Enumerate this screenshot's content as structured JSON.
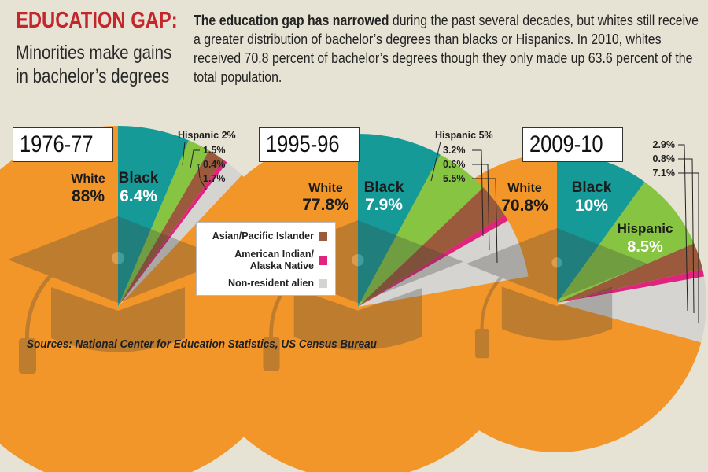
{
  "header": {
    "title": "EDUCATION GAP:",
    "subtitle_line1": "Minorities make gains",
    "subtitle_line2": "in bachelor’s degrees",
    "lead_bold": "The education gap has narrowed",
    "lead_text": " during the past several decades, but whites still receive a greater distribution of bachelor’s degrees than blacks or Hispanics. In 2010, whites received 70.8 percent of bachelor’s degrees though they only made up 63.6 percent of the total population."
  },
  "legend": {
    "items": [
      {
        "label": "Asian/Pacific Islander",
        "color": "#9b5a3b"
      },
      {
        "label": "American Indian/ Alaska Native",
        "color": "#e0237f"
      },
      {
        "label": "Non-resident alien",
        "color": "#d6d4d0"
      }
    ]
  },
  "sources": "Sources: National Center for Education Statistics, US Census Bureau",
  "colors": {
    "white": "#f3962a",
    "black": "#169a98",
    "hispanic": "#86c442",
    "asian": "#9b5a3b",
    "native": "#e0237f",
    "nonresident": "#d6d4d0",
    "background": "#e6e3d4"
  },
  "chart_data": [
    {
      "type": "pie",
      "title": "1976-77",
      "categories": [
        "White",
        "Black",
        "Hispanic",
        "Asian/Pacific Islander",
        "American Indian/Alaska Native",
        "Non-resident alien"
      ],
      "values": [
        88,
        6.4,
        2,
        1.5,
        0.4,
        1.7
      ],
      "labels": {
        "white": {
          "name": "White",
          "value": "88%"
        },
        "black": {
          "name": "Black",
          "value": "6.4%"
        },
        "callouts": [
          "Hispanic 2%",
          "1.5%",
          "0.4%",
          "1.7%"
        ]
      }
    },
    {
      "type": "pie",
      "title": "1995-96",
      "categories": [
        "White",
        "Black",
        "Hispanic",
        "Asian/Pacific Islander",
        "American Indian/Alaska Native",
        "Non-resident alien"
      ],
      "values": [
        77.8,
        7.9,
        5,
        3.2,
        0.6,
        5.5
      ],
      "labels": {
        "white": {
          "name": "White",
          "value": "77.8%"
        },
        "black": {
          "name": "Black",
          "value": "7.9%"
        },
        "callouts": [
          "Hispanic 5%",
          "3.2%",
          "0.6%",
          "5.5%"
        ]
      }
    },
    {
      "type": "pie",
      "title": "2009-10",
      "categories": [
        "White",
        "Black",
        "Hispanic",
        "Asian/Pacific Islander",
        "American Indian/Alaska Native",
        "Non-resident alien"
      ],
      "values": [
        70.8,
        10,
        8.5,
        2.9,
        0.8,
        7.1
      ],
      "labels": {
        "white": {
          "name": "White",
          "value": "70.8%"
        },
        "black": {
          "name": "Black",
          "value": "10%"
        },
        "hispanic": {
          "name": "Hispanic",
          "value": "8.5%"
        },
        "callouts": [
          "2.9%",
          "0.8%",
          "7.1%"
        ]
      }
    }
  ]
}
